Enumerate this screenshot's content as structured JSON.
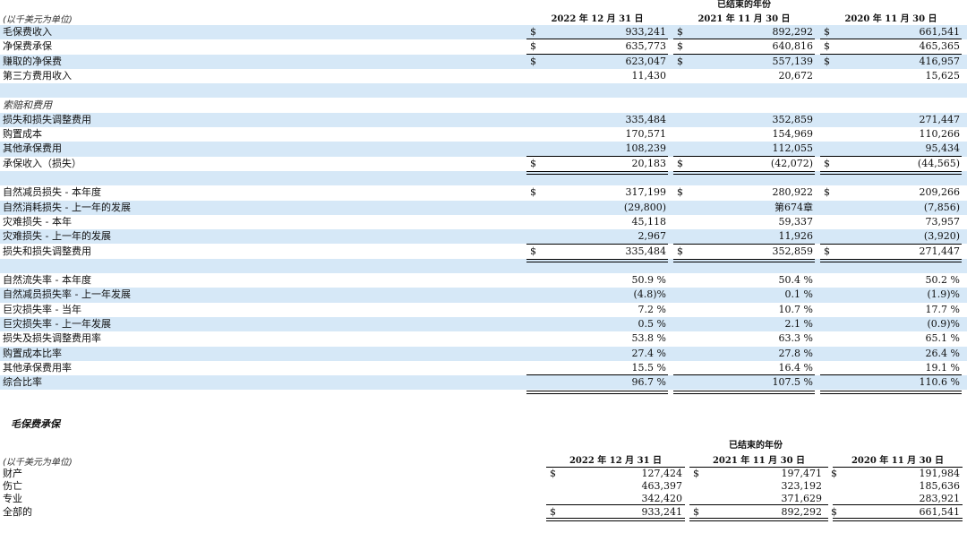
{
  "table1": {
    "unit_label": "(以千美元为单位)",
    "group_header": "已结束的年份",
    "col_headers": [
      "2022 年 12 月 31 日",
      "2021 年 11 月 30 日",
      "2020 年 11 月 30 日"
    ],
    "rows": [
      {
        "label": "毛保费收入",
        "c": [
          "$",
          "$",
          "$"
        ],
        "v": [
          "933,241",
          "892,292",
          "661,541"
        ]
      },
      {
        "label": "净保费承保",
        "c": [
          "$",
          "$",
          "$"
        ],
        "v": [
          "635,773",
          "640,816",
          "465,365"
        ]
      },
      {
        "label": "赚取的净保费",
        "c": [
          "$",
          "$",
          "$"
        ],
        "v": [
          "623,047",
          "557,139",
          "416,957"
        ]
      },
      {
        "label": "第三方费用收入",
        "c": [
          "",
          "",
          ""
        ],
        "v": [
          "11,430",
          "20,672",
          "15,625"
        ]
      },
      {
        "label": "",
        "c": [
          "",
          "",
          ""
        ],
        "v": [
          "",
          "",
          ""
        ]
      },
      {
        "label": "索赔和费用",
        "c": [
          "",
          "",
          ""
        ],
        "v": [
          "",
          "",
          ""
        ]
      },
      {
        "label": "损失和损失调整费用",
        "c": [
          "",
          "",
          ""
        ],
        "v": [
          "335,484",
          "352,859",
          "271,447"
        ]
      },
      {
        "label": "购置成本",
        "c": [
          "",
          "",
          ""
        ],
        "v": [
          "170,571",
          "154,969",
          "110,266"
        ]
      },
      {
        "label": "其他承保费用",
        "c": [
          "",
          "",
          ""
        ],
        "v": [
          "108,239",
          "112,055",
          "95,434"
        ]
      },
      {
        "label": "承保收入（损失）",
        "c": [
          "$",
          "$",
          "$"
        ],
        "v": [
          "20,183",
          "(42,072)",
          "(44,565)"
        ]
      },
      {
        "label": "",
        "c": [
          "",
          "",
          ""
        ],
        "v": [
          "",
          "",
          ""
        ]
      },
      {
        "label": "自然减员损失 - 本年度",
        "c": [
          "$",
          "$",
          "$"
        ],
        "v": [
          "317,199",
          "280,922",
          "209,266"
        ]
      },
      {
        "label": "自然消耗损失 - 上一年的发展",
        "c": [
          "",
          "",
          ""
        ],
        "v": [
          "(29,800)",
          "第674章",
          "(7,856)"
        ]
      },
      {
        "label": "灾难损失 - 本年",
        "c": [
          "",
          "",
          ""
        ],
        "v": [
          "45,118",
          "59,337",
          "73,957"
        ]
      },
      {
        "label": "灾难损失 - 上一年的发展",
        "c": [
          "",
          "",
          ""
        ],
        "v": [
          "2,967",
          "11,926",
          "(3,920)"
        ]
      },
      {
        "label": "损失和损失调整费用",
        "c": [
          "$",
          "$",
          "$"
        ],
        "v": [
          "335,484",
          "352,859",
          "271,447"
        ]
      },
      {
        "label": "",
        "c": [
          "",
          "",
          ""
        ],
        "v": [
          "",
          "",
          ""
        ]
      },
      {
        "label": "自然流失率 - 本年度",
        "c": [
          "",
          "",
          ""
        ],
        "v": [
          "50.9 %",
          "50.4 %",
          "50.2 %"
        ]
      },
      {
        "label": "自然减员损失率 - 上一年发展",
        "c": [
          "",
          "",
          ""
        ],
        "v": [
          "(4.8)%",
          "0.1 %",
          "(1.9)%"
        ]
      },
      {
        "label": "巨灾损失率 - 当年",
        "c": [
          "",
          "",
          ""
        ],
        "v": [
          "7.2 %",
          "10.7 %",
          "17.7 %"
        ]
      },
      {
        "label": "巨灾损失率 - 上一年发展",
        "c": [
          "",
          "",
          ""
        ],
        "v": [
          "0.5 %",
          "2.1 %",
          "(0.9)%"
        ]
      },
      {
        "label": "损失及损失调整费用率",
        "c": [
          "",
          "",
          ""
        ],
        "v": [
          "53.8 %",
          "63.3 %",
          "65.1 %"
        ]
      },
      {
        "label": "购置成本比率",
        "c": [
          "",
          "",
          ""
        ],
        "v": [
          "27.4 %",
          "27.8 %",
          "26.4 %"
        ]
      },
      {
        "label": "其他承保费用率",
        "c": [
          "",
          "",
          ""
        ],
        "v": [
          "15.5 %",
          "16.4 %",
          "19.1 %"
        ]
      },
      {
        "label": "综合比率",
        "c": [
          "",
          "",
          ""
        ],
        "v": [
          "96.7 %",
          "107.5 %",
          "110.6 %"
        ]
      }
    ]
  },
  "section2_title": "毛保费承保",
  "table2": {
    "unit_label": "(以千美元为单位)",
    "group_header": "已结束的年份",
    "col_headers": [
      "2022 年 12 月 31 日",
      "2021 年 11 月 30 日",
      "2020 年 11 月 30 日"
    ],
    "rows": [
      {
        "label": "财产",
        "c": [
          "$",
          "$",
          "$"
        ],
        "v": [
          "127,424",
          "197,471",
          "191,984"
        ]
      },
      {
        "label": "伤亡",
        "c": [
          "",
          "",
          ""
        ],
        "v": [
          "463,397",
          "323,192",
          "185,636"
        ]
      },
      {
        "label": "专业",
        "c": [
          "",
          "",
          ""
        ],
        "v": [
          "342,420",
          "371,629",
          "283,921"
        ]
      },
      {
        "label": "全部的",
        "c": [
          "$",
          "$",
          "$"
        ],
        "v": [
          "933,241",
          "892,292",
          "661,541"
        ]
      }
    ]
  }
}
